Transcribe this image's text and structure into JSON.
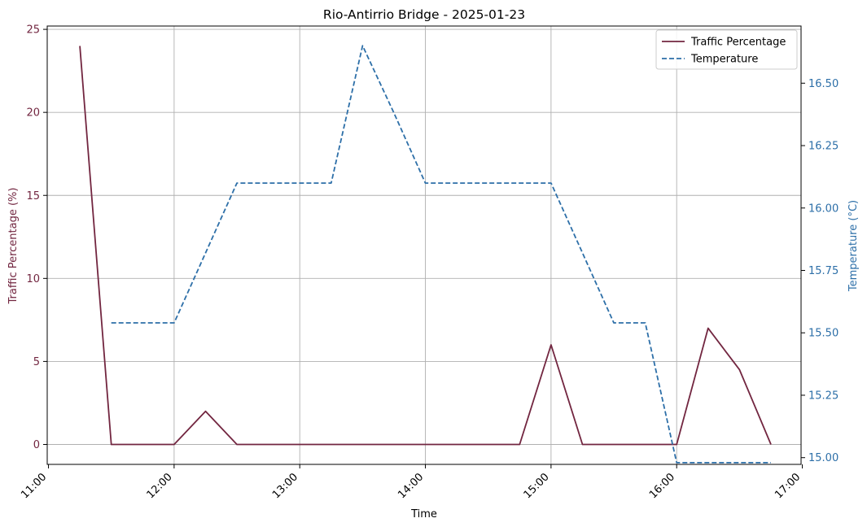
{
  "chart_data": {
    "type": "line",
    "title": "Rio-Antirrio Bridge - 2025-01-23",
    "xlabel": "Time",
    "ylabel_left": "Traffic Percentage (%)",
    "ylabel_right": "Temperature (°C)",
    "x_ticks": [
      "11:00",
      "12:00",
      "13:00",
      "14:00",
      "15:00",
      "16:00",
      "17:00"
    ],
    "y_left_ticks": [
      "0",
      "5",
      "10",
      "15",
      "20",
      "25"
    ],
    "y_right_ticks": [
      "15.00",
      "15.25",
      "15.50",
      "15.75",
      "16.00",
      "16.25",
      "16.50"
    ],
    "xlim_hours": [
      10.99,
      16.99
    ],
    "ylim_left": [
      -1.2,
      25.2
    ],
    "ylim_right": [
      14.973,
      16.729
    ],
    "grid": true,
    "legend_position": "top-right",
    "colors": {
      "traffic": "#722640",
      "temperature": "#2d6fa8",
      "grid": "#b0b0b0"
    },
    "series": [
      {
        "name": "Traffic Percentage",
        "axis": "left",
        "style": "solid",
        "x": [
          "11:15",
          "11:30",
          "11:45",
          "12:00",
          "12:15",
          "12:30",
          "12:45",
          "13:00",
          "13:15",
          "13:30",
          "13:45",
          "14:00",
          "14:15",
          "14:30",
          "14:45",
          "15:00",
          "15:15",
          "15:30",
          "15:45",
          "16:00",
          "16:15",
          "16:30",
          "16:45"
        ],
        "values": [
          24,
          0,
          0,
          0,
          2,
          0,
          0,
          0,
          0,
          0,
          0,
          0,
          0,
          0,
          0,
          6,
          0,
          0,
          0,
          0,
          7,
          4.5,
          0
        ]
      },
      {
        "name": "Temperature",
        "axis": "right",
        "style": "dashed",
        "x": [
          "11:30",
          "11:45",
          "12:00",
          "12:15",
          "12:30",
          "12:45",
          "13:00",
          "13:15",
          "13:30",
          "13:45",
          "14:00",
          "14:15",
          "14:30",
          "14:45",
          "15:00",
          "15:15",
          "15:30",
          "15:45",
          "16:00",
          "16:15",
          "16:30",
          "16:45"
        ],
        "values": [
          15.54,
          15.54,
          15.54,
          15.82,
          16.1,
          16.1,
          16.1,
          16.1,
          16.65,
          16.38,
          16.1,
          16.1,
          16.1,
          16.1,
          16.1,
          15.82,
          15.54,
          15.54,
          14.98,
          14.98,
          14.98,
          14.98
        ]
      }
    ]
  }
}
